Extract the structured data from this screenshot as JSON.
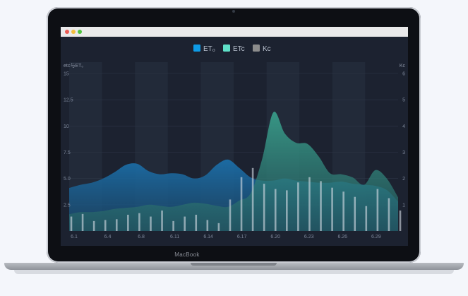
{
  "device": {
    "brand": "MacBook"
  },
  "window": {
    "controls": [
      "close",
      "minimize",
      "zoom"
    ]
  },
  "legend": [
    {
      "label": "ET₀",
      "color": "#0e9be6"
    },
    {
      "label": "ETc",
      "color": "#5fe0c7"
    },
    {
      "label": "Kc",
      "color": "#8c8c8c"
    }
  ],
  "axes": {
    "y_left_title": "etc与ET₀",
    "y_right_title": "Kc",
    "y_left_ticks": [
      "15",
      "12.5",
      "10",
      "7.5",
      "5.0",
      "2.5"
    ],
    "y_right_ticks": [
      "6",
      "5",
      "4",
      "3",
      "2",
      "1"
    ],
    "x_ticks": [
      "6.1",
      "6.4",
      "6.8",
      "6.11",
      "6.14",
      "6.17",
      "6.20",
      "6.23",
      "6.26",
      "6.29"
    ]
  },
  "chart_data": {
    "type": "area",
    "title": "",
    "ylim": [
      0,
      15
    ],
    "y2lim": [
      0,
      6
    ],
    "x": [
      1,
      2,
      3,
      4,
      5,
      6,
      7,
      8,
      9,
      10,
      11,
      12,
      13,
      14,
      15,
      16,
      17,
      18,
      19,
      20,
      21,
      22,
      23,
      24,
      25,
      26,
      27,
      28,
      29,
      30
    ],
    "x_labels": [
      "6.1",
      "6.4",
      "6.8",
      "6.11",
      "6.14",
      "6.17",
      "6.20",
      "6.23",
      "6.26",
      "6.29"
    ],
    "series": [
      {
        "name": "ET₀",
        "axis": "left",
        "type": "area",
        "values": [
          4.1,
          4.4,
          4.6,
          5.0,
          5.6,
          6.3,
          6.4,
          5.7,
          5.4,
          5.5,
          5.4,
          5.0,
          5.3,
          6.3,
          6.8,
          6.0,
          5.1,
          4.8,
          4.8,
          5.0,
          4.8,
          4.7,
          4.6,
          4.6,
          4.7,
          4.5,
          4.4,
          4.3,
          3.9,
          2.8
        ]
      },
      {
        "name": "ETc",
        "axis": "left",
        "type": "area",
        "values": [
          1.6,
          1.8,
          1.8,
          1.9,
          2.1,
          2.2,
          2.3,
          2.5,
          2.4,
          2.3,
          2.5,
          2.7,
          2.6,
          2.4,
          2.3,
          2.9,
          3.6,
          6.8,
          11.3,
          9.3,
          8.4,
          8.3,
          7.1,
          5.5,
          5.4,
          5.1,
          4.4,
          5.8,
          5.0,
          3.2
        ]
      },
      {
        "name": "Kc",
        "axis": "right",
        "type": "bar",
        "values": [
          0.55,
          0.65,
          0.38,
          0.42,
          0.45,
          0.62,
          0.68,
          0.55,
          0.78,
          0.38,
          0.55,
          0.62,
          0.42,
          0.3,
          1.2,
          2.05,
          2.4,
          1.8,
          1.6,
          1.55,
          1.85,
          2.05,
          1.9,
          1.65,
          1.5,
          1.3,
          0.95,
          1.6,
          1.25,
          0.78
        ]
      }
    ]
  }
}
